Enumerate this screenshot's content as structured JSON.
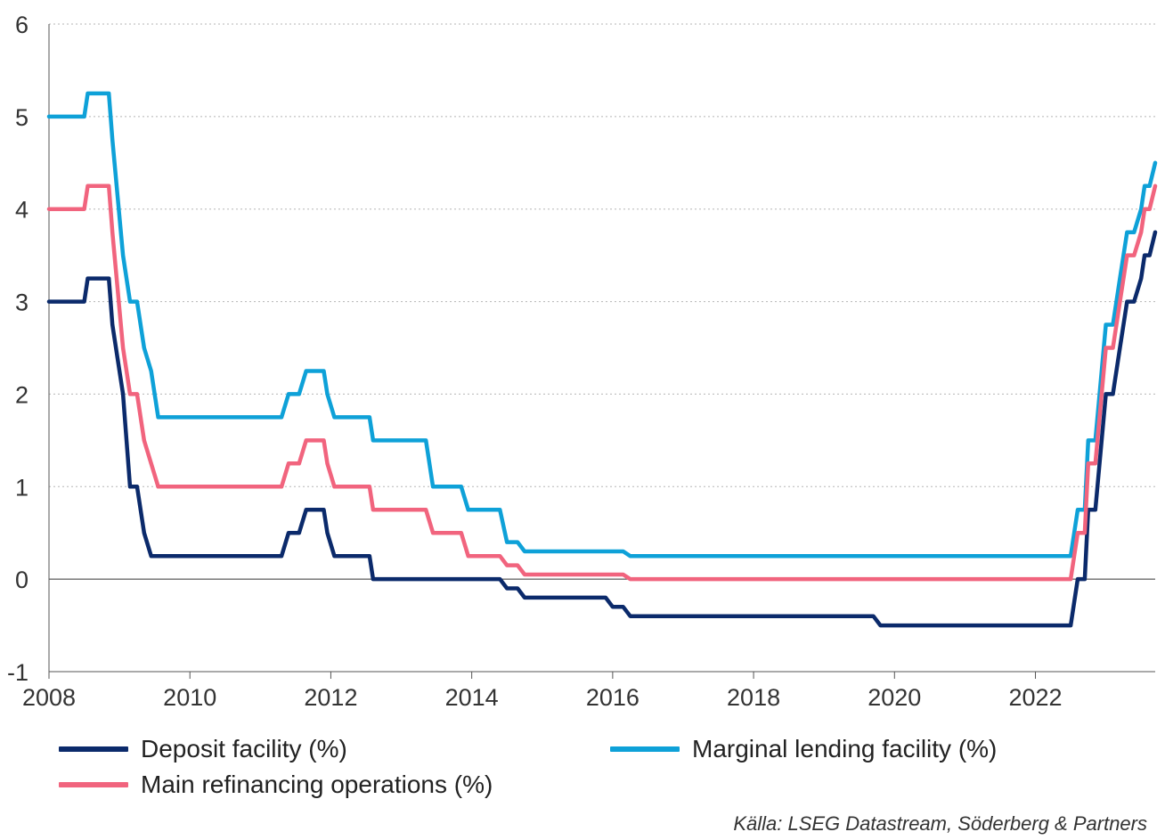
{
  "chart_data": {
    "type": "line",
    "xlim": [
      2008.0,
      2023.7
    ],
    "ylim": [
      -1,
      6
    ],
    "x_ticks": [
      "2008",
      "2010",
      "2012",
      "2014",
      "2016",
      "2018",
      "2020",
      "2022"
    ],
    "y_ticks": [
      "-1",
      "0",
      "1",
      "2",
      "3",
      "4",
      "5",
      "6"
    ],
    "grid": "horizontal dotted",
    "legend_position": "bottom",
    "series": [
      {
        "name": "Deposit facility (%)",
        "color": "#0b2a6b",
        "points": [
          [
            2008.0,
            3.0
          ],
          [
            2008.5,
            3.0
          ],
          [
            2008.55,
            3.25
          ],
          [
            2008.85,
            3.25
          ],
          [
            2008.9,
            2.75
          ],
          [
            2009.05,
            2.0
          ],
          [
            2009.15,
            1.0
          ],
          [
            2009.25,
            1.0
          ],
          [
            2009.35,
            0.5
          ],
          [
            2009.45,
            0.25
          ],
          [
            2011.3,
            0.25
          ],
          [
            2011.4,
            0.5
          ],
          [
            2011.55,
            0.5
          ],
          [
            2011.65,
            0.75
          ],
          [
            2011.9,
            0.75
          ],
          [
            2011.95,
            0.5
          ],
          [
            2012.05,
            0.25
          ],
          [
            2012.55,
            0.25
          ],
          [
            2012.6,
            0.0
          ],
          [
            2014.4,
            0.0
          ],
          [
            2014.5,
            -0.1
          ],
          [
            2014.65,
            -0.1
          ],
          [
            2014.75,
            -0.2
          ],
          [
            2015.9,
            -0.2
          ],
          [
            2016.0,
            -0.3
          ],
          [
            2016.15,
            -0.3
          ],
          [
            2016.25,
            -0.4
          ],
          [
            2019.7,
            -0.4
          ],
          [
            2019.8,
            -0.5
          ],
          [
            2022.5,
            -0.5
          ],
          [
            2022.6,
            0.0
          ],
          [
            2022.7,
            0.0
          ],
          [
            2022.75,
            0.75
          ],
          [
            2022.85,
            0.75
          ],
          [
            2023.0,
            2.0
          ],
          [
            2023.1,
            2.0
          ],
          [
            2023.2,
            2.5
          ],
          [
            2023.3,
            3.0
          ],
          [
            2023.4,
            3.0
          ],
          [
            2023.5,
            3.25
          ],
          [
            2023.55,
            3.5
          ],
          [
            2023.62,
            3.5
          ],
          [
            2023.7,
            3.75
          ]
        ]
      },
      {
        "name": "Marginal lending facility (%)",
        "color": "#0ea1d8",
        "points": [
          [
            2008.0,
            5.0
          ],
          [
            2008.5,
            5.0
          ],
          [
            2008.55,
            5.25
          ],
          [
            2008.85,
            5.25
          ],
          [
            2008.9,
            4.75
          ],
          [
            2009.05,
            3.5
          ],
          [
            2009.15,
            3.0
          ],
          [
            2009.25,
            3.0
          ],
          [
            2009.35,
            2.5
          ],
          [
            2009.45,
            2.25
          ],
          [
            2009.55,
            1.75
          ],
          [
            2011.3,
            1.75
          ],
          [
            2011.4,
            2.0
          ],
          [
            2011.55,
            2.0
          ],
          [
            2011.65,
            2.25
          ],
          [
            2011.9,
            2.25
          ],
          [
            2011.95,
            2.0
          ],
          [
            2012.05,
            1.75
          ],
          [
            2012.55,
            1.75
          ],
          [
            2012.6,
            1.5
          ],
          [
            2013.35,
            1.5
          ],
          [
            2013.45,
            1.0
          ],
          [
            2013.85,
            1.0
          ],
          [
            2013.95,
            0.75
          ],
          [
            2014.4,
            0.75
          ],
          [
            2014.5,
            0.4
          ],
          [
            2014.65,
            0.4
          ],
          [
            2014.75,
            0.3
          ],
          [
            2016.15,
            0.3
          ],
          [
            2016.25,
            0.25
          ],
          [
            2022.5,
            0.25
          ],
          [
            2022.6,
            0.75
          ],
          [
            2022.7,
            0.75
          ],
          [
            2022.75,
            1.5
          ],
          [
            2022.85,
            1.5
          ],
          [
            2023.0,
            2.75
          ],
          [
            2023.1,
            2.75
          ],
          [
            2023.2,
            3.25
          ],
          [
            2023.3,
            3.75
          ],
          [
            2023.4,
            3.75
          ],
          [
            2023.5,
            4.0
          ],
          [
            2023.55,
            4.25
          ],
          [
            2023.62,
            4.25
          ],
          [
            2023.7,
            4.5
          ]
        ]
      },
      {
        "name": "Main refinancing operations (%)",
        "color": "#f1647e",
        "points": [
          [
            2008.0,
            4.0
          ],
          [
            2008.5,
            4.0
          ],
          [
            2008.55,
            4.25
          ],
          [
            2008.85,
            4.25
          ],
          [
            2008.9,
            3.75
          ],
          [
            2009.05,
            2.5
          ],
          [
            2009.15,
            2.0
          ],
          [
            2009.25,
            2.0
          ],
          [
            2009.35,
            1.5
          ],
          [
            2009.45,
            1.25
          ],
          [
            2009.55,
            1.0
          ],
          [
            2011.3,
            1.0
          ],
          [
            2011.4,
            1.25
          ],
          [
            2011.55,
            1.25
          ],
          [
            2011.65,
            1.5
          ],
          [
            2011.9,
            1.5
          ],
          [
            2011.95,
            1.25
          ],
          [
            2012.05,
            1.0
          ],
          [
            2012.55,
            1.0
          ],
          [
            2012.6,
            0.75
          ],
          [
            2013.35,
            0.75
          ],
          [
            2013.45,
            0.5
          ],
          [
            2013.85,
            0.5
          ],
          [
            2013.95,
            0.25
          ],
          [
            2014.4,
            0.25
          ],
          [
            2014.5,
            0.15
          ],
          [
            2014.65,
            0.15
          ],
          [
            2014.75,
            0.05
          ],
          [
            2016.15,
            0.05
          ],
          [
            2016.25,
            0.0
          ],
          [
            2022.5,
            0.0
          ],
          [
            2022.6,
            0.5
          ],
          [
            2022.7,
            0.5
          ],
          [
            2022.75,
            1.25
          ],
          [
            2022.85,
            1.25
          ],
          [
            2023.0,
            2.5
          ],
          [
            2023.1,
            2.5
          ],
          [
            2023.2,
            3.0
          ],
          [
            2023.3,
            3.5
          ],
          [
            2023.4,
            3.5
          ],
          [
            2023.5,
            3.75
          ],
          [
            2023.55,
            4.0
          ],
          [
            2023.62,
            4.0
          ],
          [
            2023.7,
            4.25
          ]
        ]
      }
    ]
  },
  "legend": {
    "deposit": "Deposit facility (%)",
    "marginal": "Marginal lending facility (%)",
    "main": "Main refinancing operations (%)"
  },
  "source": "Källa: LSEG Datastream, Söderberg & Partners"
}
